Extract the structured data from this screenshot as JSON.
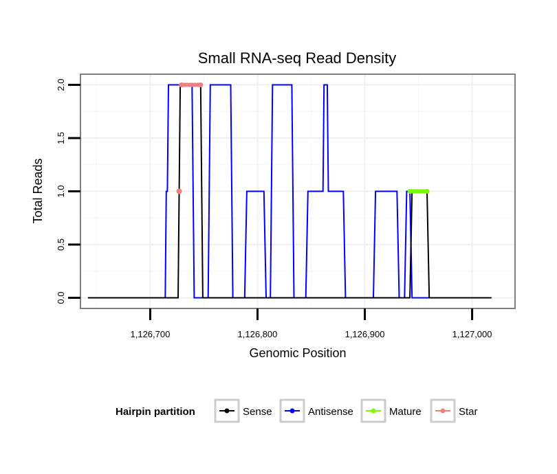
{
  "chart_data": {
    "type": "line",
    "title": "Small RNA-seq Read Density",
    "xlabel": "Genomic Position",
    "ylabel": "Total Reads",
    "xlim": [
      1126635,
      1127040
    ],
    "ylim": [
      -0.1,
      2.1
    ],
    "x_ticks": [
      {
        "value": 1126700,
        "label": "1,126,700"
      },
      {
        "value": 1126800,
        "label": "1,126,800"
      },
      {
        "value": 1126900,
        "label": "1,126,900"
      },
      {
        "value": 1127000,
        "label": "1,127,000"
      }
    ],
    "y_ticks": [
      {
        "value": 0.0,
        "label": "0.0"
      },
      {
        "value": 0.5,
        "label": "0.5"
      },
      {
        "value": 1.0,
        "label": "1.0"
      },
      {
        "value": 1.5,
        "label": "1.5"
      },
      {
        "value": 2.0,
        "label": "2.0"
      }
    ],
    "legend": {
      "title": "Hairpin partition",
      "position": "bottom"
    },
    "series": [
      {
        "name": "Sense",
        "color": "#000000",
        "kind": "line",
        "points": [
          [
            1126642,
            0
          ],
          [
            1126726,
            0
          ],
          [
            1126728,
            2
          ],
          [
            1126747,
            2
          ],
          [
            1126749,
            0
          ],
          [
            1126942,
            0
          ],
          [
            1126944,
            1
          ],
          [
            1126958,
            1
          ],
          [
            1126960,
            0
          ],
          [
            1127018,
            0
          ]
        ]
      },
      {
        "name": "Antisense",
        "color": "#0000ff",
        "kind": "line",
        "points": [
          [
            1126642,
            0
          ],
          [
            1126714,
            0
          ],
          [
            1126715,
            1
          ],
          [
            1126716,
            1
          ],
          [
            1126717,
            2
          ],
          [
            1126739,
            2
          ],
          [
            1126741,
            0
          ],
          [
            1126754,
            0
          ],
          [
            1126756,
            2
          ],
          [
            1126775,
            2
          ],
          [
            1126777,
            0
          ],
          [
            1126788,
            0
          ],
          [
            1126790,
            1
          ],
          [
            1126806,
            1
          ],
          [
            1126808,
            0
          ],
          [
            1126812,
            0
          ],
          [
            1126814,
            2
          ],
          [
            1126832,
            2
          ],
          [
            1126834,
            0
          ],
          [
            1126845,
            0
          ],
          [
            1126847,
            1
          ],
          [
            1126861,
            1
          ],
          [
            1126862,
            2
          ],
          [
            1126865,
            2
          ],
          [
            1126866,
            1
          ],
          [
            1126880,
            1
          ],
          [
            1126882,
            0
          ],
          [
            1126908,
            0
          ],
          [
            1126910,
            1
          ],
          [
            1126930,
            1
          ],
          [
            1126932,
            0
          ],
          [
            1126937,
            0
          ],
          [
            1126939,
            1
          ],
          [
            1126942,
            1
          ],
          [
            1126944,
            0
          ],
          [
            1127018,
            0
          ]
        ]
      },
      {
        "name": "Mature",
        "color": "#7cfc00",
        "kind": "segment",
        "points": [
          [
            1126942,
            1
          ],
          [
            1126958,
            1
          ]
        ]
      },
      {
        "name": "Star",
        "color": "#f08080",
        "kind": "segment",
        "points": [
          [
            1126729,
            2
          ],
          [
            1126747,
            2
          ]
        ],
        "extra_points": [
          [
            1126727,
            1
          ]
        ]
      }
    ]
  }
}
